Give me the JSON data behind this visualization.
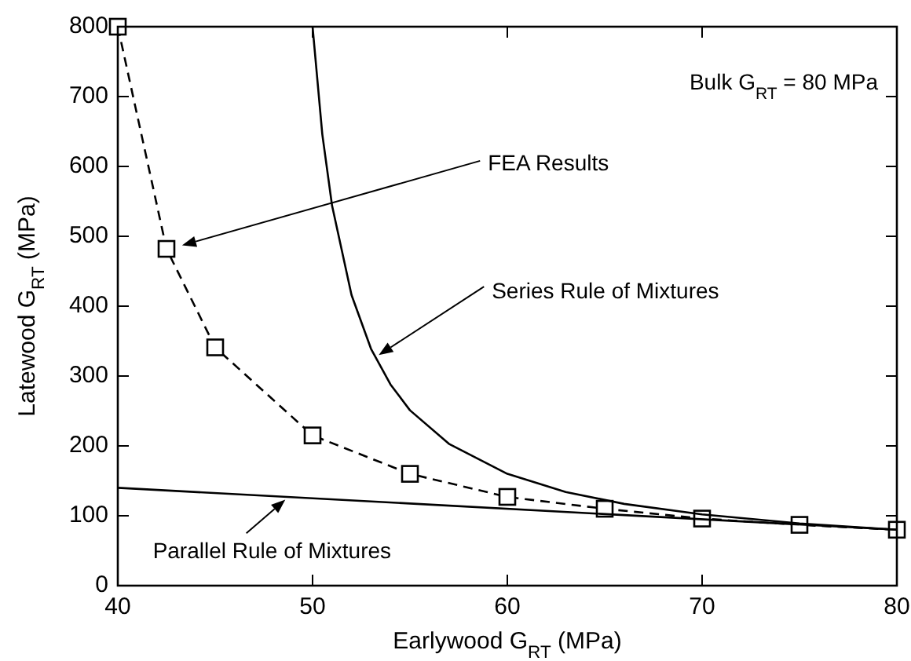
{
  "chart_data": {
    "type": "line",
    "xlabel": "Earlywood G$_{RT}$ (MPa)",
    "ylabel": "Latewood G$_{RT}$ (MPa)",
    "xlim": [
      40,
      80
    ],
    "ylim": [
      0,
      800
    ],
    "xticks": [
      40,
      50,
      60,
      70,
      80
    ],
    "yticks": [
      0,
      100,
      200,
      300,
      400,
      500,
      600,
      700,
      800
    ],
    "grid": false,
    "series": [
      {
        "color": "#000000",
        "marker": "square",
        "line_style": "dashed",
        "x": [
          40,
          42.5,
          45,
          50,
          55,
          60,
          65,
          70,
          75,
          80
        ],
        "values": [
          800,
          482,
          341,
          215,
          160,
          127,
          110,
          96,
          87,
          80
        ]
      },
      {
        "color": "#000000",
        "marker": "none",
        "line_style": "solid",
        "x": [
          50,
          50.5,
          51,
          52,
          53,
          54,
          55,
          57,
          60,
          63,
          66,
          70,
          75,
          80
        ],
        "values": [
          800,
          646,
          544,
          416,
          339,
          288,
          251,
          203,
          160,
          134,
          117,
          102,
          89,
          80
        ]
      },
      {
        "color": "#000000",
        "marker": "none",
        "line_style": "solid",
        "x": [
          40,
          80
        ],
        "values": [
          140,
          80
        ]
      }
    ],
    "annotations": [
      "FEA Results",
      {
        "text": "Series Rule of Mixtures",
        "x": 53.4,
        "y": 330
      },
      {
        "text": "Parallel Rule of Mixtures",
        "x": 48.6,
        "y": 123
      },
      "Bulk G$_{RT}$ = 80 MPa"
    ]
  }
}
